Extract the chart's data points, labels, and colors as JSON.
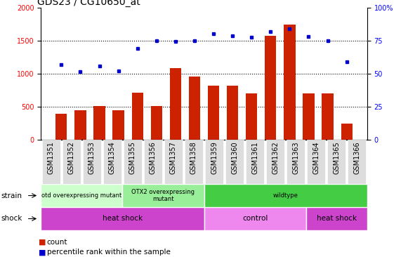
{
  "title": "GDS23 / CG10650_at",
  "categories": [
    "GSM1351",
    "GSM1352",
    "GSM1353",
    "GSM1354",
    "GSM1355",
    "GSM1356",
    "GSM1357",
    "GSM1358",
    "GSM1359",
    "GSM1360",
    "GSM1361",
    "GSM1362",
    "GSM1363",
    "GSM1364",
    "GSM1365",
    "GSM1366"
  ],
  "counts": [
    400,
    450,
    510,
    450,
    720,
    510,
    1090,
    960,
    820,
    820,
    700,
    1580,
    1750,
    700,
    700,
    250
  ],
  "percentiles_pct": [
    57,
    51.5,
    56,
    52,
    69,
    75,
    74.5,
    75,
    80.5,
    79,
    77.5,
    82,
    84,
    78,
    75,
    59
  ],
  "bar_color": "#cc2200",
  "dot_color": "#0000cc",
  "ylim_left": [
    0,
    2000
  ],
  "ylim_right": [
    0,
    100
  ],
  "yticks_left": [
    0,
    500,
    1000,
    1500,
    2000
  ],
  "yticks_right": [
    0,
    25,
    50,
    75,
    100
  ],
  "ytick_labels_right": [
    "0",
    "25",
    "50",
    "75",
    "100%"
  ],
  "grid_values": [
    500,
    1000,
    1500
  ],
  "strain_groups": [
    {
      "label": "otd overexpressing mutant",
      "start": 0,
      "end": 4,
      "color": "#ccffcc"
    },
    {
      "label": "OTX2 overexpressing\nmutant",
      "start": 4,
      "end": 8,
      "color": "#99ee99"
    },
    {
      "label": "wildtype",
      "start": 8,
      "end": 16,
      "color": "#44cc44"
    }
  ],
  "shock_groups": [
    {
      "label": "heat shock",
      "start": 0,
      "end": 8,
      "color": "#cc44cc"
    },
    {
      "label": "control",
      "start": 8,
      "end": 13,
      "color": "#ee88ee"
    },
    {
      "label": "heat shock",
      "start": 13,
      "end": 16,
      "color": "#cc44cc"
    }
  ],
  "legend_items": [
    {
      "label": "count",
      "color": "#cc2200"
    },
    {
      "label": "percentile rank within the sample",
      "color": "#0000cc"
    }
  ],
  "title_fontsize": 10,
  "tick_fontsize": 7,
  "background_color": "#ffffff",
  "xtick_bg": "#dddddd"
}
